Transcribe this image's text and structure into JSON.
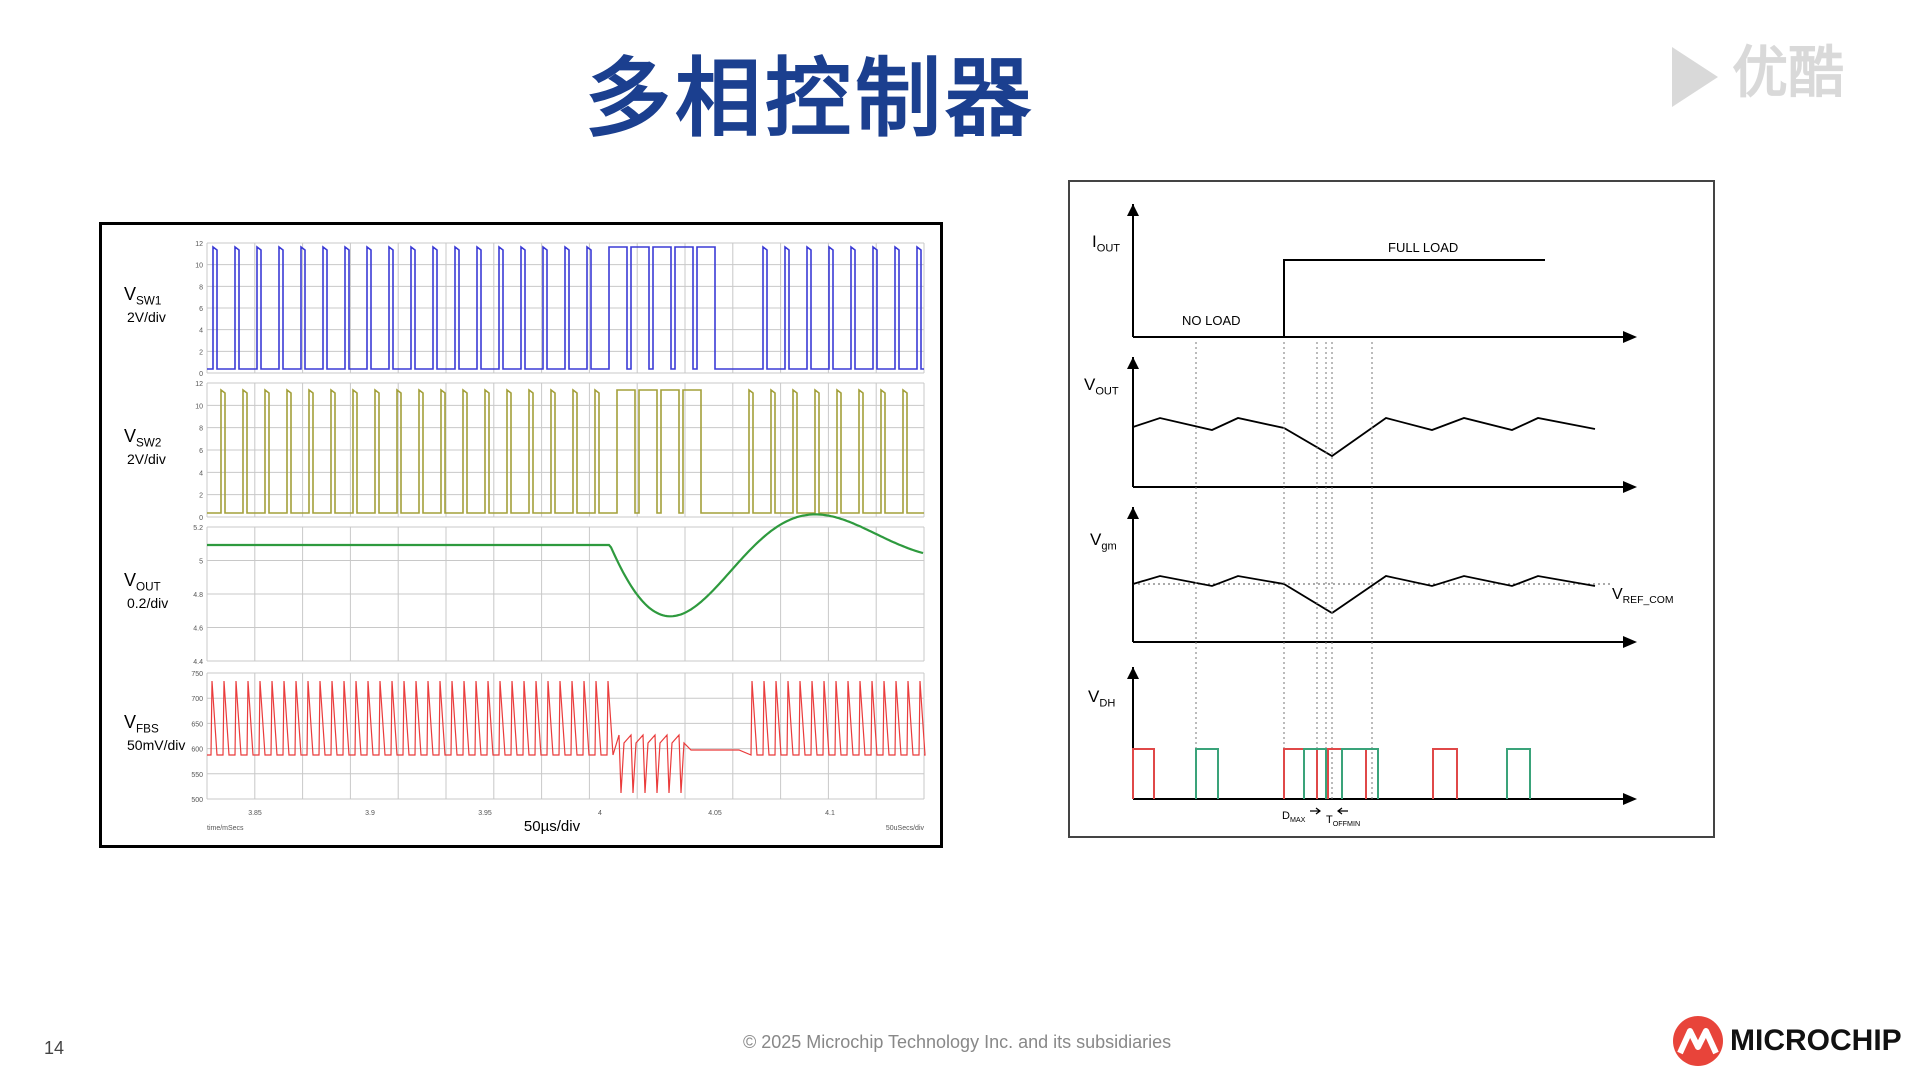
{
  "slide": {
    "title": "多相控制器",
    "page_number": "14",
    "copyright": "© 2025 Microchip Technology Inc. and its subsidiaries",
    "logo_text": "MICROCHIP",
    "watermark": "优酷"
  },
  "scope": {
    "channels": [
      {
        "name": "V",
        "sub": "SW1",
        "scale": "2V/div",
        "color": "#3b3bd6",
        "ticks": [
          "12",
          "10",
          "8",
          "6",
          "4",
          "2",
          "0"
        ]
      },
      {
        "name": "V",
        "sub": "SW2",
        "scale": "2V/div",
        "color": "#a3a03a",
        "ticks": [
          "12",
          "10",
          "8",
          "6",
          "4",
          "2",
          "0"
        ]
      },
      {
        "name": "V",
        "sub": "OUT",
        "scale": "0.2/div",
        "color": "#2e9a3e",
        "ticks": [
          "5.2",
          "5",
          "4.8",
          "4.6",
          "4.4"
        ]
      },
      {
        "name": "V",
        "sub": "FBS",
        "scale": "50mV/div",
        "color": "#ea3b3b",
        "ticks": [
          "750",
          "700",
          "650",
          "600",
          "550",
          "500"
        ]
      }
    ],
    "x_ticks": [
      "3.85",
      "3.9",
      "3.95",
      "4",
      "4.05",
      "4.1"
    ],
    "x_left_label": "time/mSecs",
    "x_center_label": "50µs/div",
    "x_right_label": "50uSecs/div"
  },
  "timing": {
    "labels": {
      "iout": "I",
      "iout_sub": "OUT",
      "vout": "V",
      "vout_sub": "OUT",
      "vgm": "V",
      "vgm_sub": "gm",
      "vdh": "V",
      "vdh_sub": "DH",
      "vref": "V",
      "vref_sub": "REF_COM",
      "no_load": "NO  LOAD",
      "full_load": "FULL LOAD",
      "dmax": "D",
      "dmax_sub": "MAX",
      "toff": "T",
      "toff_sub": "OFFMIN"
    },
    "colors": {
      "red": "#e04848",
      "green": "#3aa37a",
      "axis": "#000000"
    }
  }
}
